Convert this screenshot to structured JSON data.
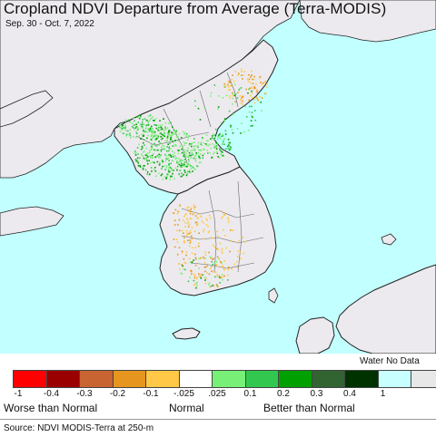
{
  "header": {
    "title": "Cropland NDVI Departure from Average (Terra-MODIS)",
    "date_range": "Sep. 30 - Oct. 7, 2022"
  },
  "colors": {
    "water": "#c2ffff",
    "land": "#eceaee",
    "border": "#333333"
  },
  "legend": {
    "water_no_data_label": "Water No Data",
    "swatches": [
      {
        "color": "#ff0000"
      },
      {
        "color": "#9a0000"
      },
      {
        "color": "#c86432"
      },
      {
        "color": "#e6961e"
      },
      {
        "color": "#ffc846"
      },
      {
        "color": "#ffffff"
      },
      {
        "color": "#78f078"
      },
      {
        "color": "#32c850"
      },
      {
        "color": "#00a000"
      },
      {
        "color": "#326432"
      },
      {
        "color": "#003200"
      },
      {
        "color": "#c8ffff"
      },
      {
        "color": "#e8e8e8"
      }
    ],
    "ticks": [
      "-1",
      "-0.4",
      "-0.3",
      "-0.2",
      "-0.1",
      "-.025",
      ".025",
      "0.1",
      "0.2",
      "0.3",
      "0.4",
      "1"
    ],
    "caption_worse": "Worse than Normal",
    "caption_normal": "Normal",
    "caption_better": "Better than Normal"
  },
  "footer": {
    "source": "Source: NDVI MODIS-Terra at 250-m"
  }
}
